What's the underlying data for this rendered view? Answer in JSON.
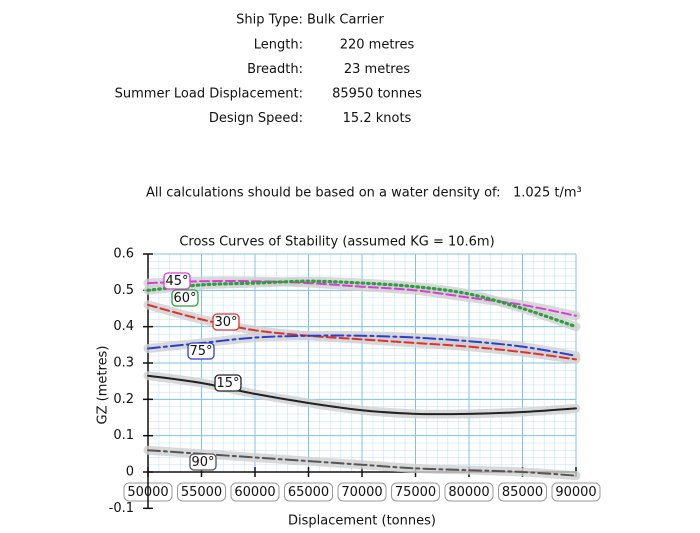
{
  "ship_details": {
    "rows": [
      {
        "label": "Length:",
        "value": "220 metres"
      },
      {
        "label": "Breadth:",
        "value": "23 metres"
      },
      {
        "label": "Summer Load Displacement:",
        "value": "85950 tonnes"
      },
      {
        "label": "Design Speed:",
        "value": "15.2 knots"
      }
    ],
    "ship_type": "Ship Type: Bulk Carrier"
  },
  "density": {
    "label": "All calculations should be based on a water density of:",
    "value": "1.025 t/m³"
  },
  "chart_data": {
    "type": "line",
    "title": "Cross Curves of Stability (assumed KG = 10.6m)",
    "x_label": "Displacement (tonnes)",
    "y_label": "GZ (metres)",
    "x": [
      50000,
      55000,
      60000,
      65000,
      70000,
      75000,
      80000,
      85000,
      90000
    ],
    "xlim": [
      50000,
      90000
    ],
    "xticks": [
      50000,
      55000,
      60000,
      65000,
      70000,
      75000,
      80000,
      85000,
      90000
    ],
    "ylim": [
      -0.1,
      0.6
    ],
    "yticks": [
      0.6,
      0.5,
      0.4,
      0.3,
      0.2,
      0.1,
      0,
      -0.1
    ],
    "grid": true,
    "series": [
      {
        "name": "45°",
        "color": "#d63fd6",
        "style": "dashed",
        "values": [
          0.52,
          0.525,
          0.525,
          0.52,
          0.51,
          0.5,
          0.48,
          0.46,
          0.43
        ]
      },
      {
        "name": "60°",
        "color": "#2e9e3e",
        "style": "dotted",
        "values": [
          0.5,
          0.515,
          0.52,
          0.525,
          0.52,
          0.51,
          0.49,
          0.45,
          0.4
        ]
      },
      {
        "name": "30°",
        "color": "#e03030",
        "style": "dashed",
        "values": [
          0.46,
          0.42,
          0.39,
          0.375,
          0.365,
          0.355,
          0.345,
          0.33,
          0.31
        ]
      },
      {
        "name": "75°",
        "color": "#2a3fd0",
        "style": "dashdot",
        "values": [
          0.34,
          0.355,
          0.37,
          0.375,
          0.375,
          0.37,
          0.36,
          0.345,
          0.32
        ]
      },
      {
        "name": "15°",
        "color": "#222222",
        "style": "solid",
        "values": [
          0.265,
          0.245,
          0.215,
          0.19,
          0.17,
          0.16,
          0.16,
          0.165,
          0.175
        ]
      },
      {
        "name": "90°",
        "color": "#555555",
        "style": "dashdot",
        "values": [
          0.06,
          0.05,
          0.04,
          0.03,
          0.02,
          0.01,
          0.005,
          0,
          -0.01
        ]
      }
    ]
  }
}
